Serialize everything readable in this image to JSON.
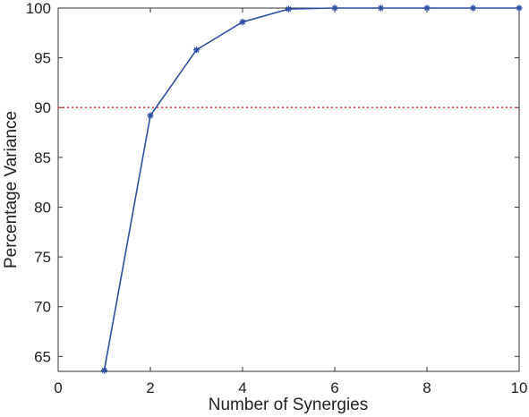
{
  "chart_data": {
    "type": "line",
    "title": "",
    "xlabel": "Number of Synergies",
    "ylabel": "Percentage Variance",
    "xlim": [
      0,
      10
    ],
    "ylim": [
      63.5,
      100
    ],
    "x_ticks": [
      "0",
      "2",
      "4",
      "6",
      "8",
      "10"
    ],
    "y_ticks": [
      "65",
      "70",
      "75",
      "80",
      "85",
      "90",
      "95",
      "100"
    ],
    "grid": false,
    "legend": "none",
    "series": [
      {
        "x": [
          1,
          2,
          3,
          4,
          5,
          6,
          7,
          8,
          9,
          10
        ],
        "values": [
          63.6,
          89.2,
          95.8,
          98.6,
          99.9,
          100,
          100,
          100,
          100,
          100
        ],
        "color": "#2e4fa3",
        "marker": "asterisk"
      }
    ],
    "reference_lines": [
      {
        "y": 90,
        "color": "#e23b3b",
        "style": "dotted"
      }
    ]
  }
}
